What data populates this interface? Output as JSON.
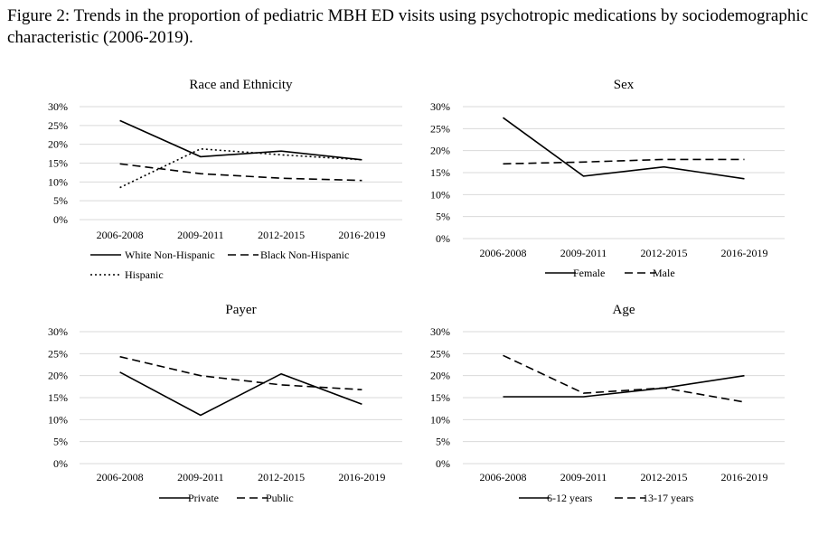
{
  "figure_title": "Figure 2: Trends in the proportion of pediatric MBH ED visits using psychotropic medications by sociodemographic characteristic (2006-2019).",
  "chart_data": [
    {
      "type": "line",
      "title": "Race and Ethnicity",
      "categories": [
        "2006-2008",
        "2009-2011",
        "2012-2015",
        "2016-2019"
      ],
      "ylim": [
        0,
        30
      ],
      "yticks": [
        "0%",
        "5%",
        "10%",
        "15%",
        "20%",
        "25%",
        "30%"
      ],
      "grid": true,
      "legend_position": "bottom",
      "series": [
        {
          "name": "White Non-Hispanic",
          "values": [
            26.3,
            16.7,
            18.2,
            15.9
          ],
          "dash": "solid"
        },
        {
          "name": "Black Non-Hispanic",
          "values": [
            14.8,
            12.2,
            11.0,
            10.4
          ],
          "dash": "dashed"
        },
        {
          "name": "Hispanic",
          "values": [
            8.5,
            18.8,
            17.2,
            15.9
          ],
          "dash": "dotted"
        }
      ]
    },
    {
      "type": "line",
      "title": "Sex",
      "categories": [
        "2006-2008",
        "2009-2011",
        "2012-2015",
        "2016-2019"
      ],
      "ylim": [
        0,
        30
      ],
      "yticks": [
        "0%",
        "5%",
        "10%",
        "15%",
        "20%",
        "25%",
        "30%"
      ],
      "grid": true,
      "legend_position": "bottom",
      "series": [
        {
          "name": "Female",
          "values": [
            27.5,
            14.2,
            16.3,
            13.6
          ],
          "dash": "solid"
        },
        {
          "name": "Male",
          "values": [
            17.0,
            17.4,
            18.0,
            18.0
          ],
          "dash": "dashed"
        }
      ]
    },
    {
      "type": "line",
      "title": "Payer",
      "categories": [
        "2006-2008",
        "2009-2011",
        "2012-2015",
        "2016-2019"
      ],
      "ylim": [
        0,
        30
      ],
      "yticks": [
        "0%",
        "5%",
        "10%",
        "15%",
        "20%",
        "25%",
        "30%"
      ],
      "grid": true,
      "legend_position": "bottom",
      "series": [
        {
          "name": "Private",
          "values": [
            20.8,
            11.0,
            20.4,
            13.5
          ],
          "dash": "solid"
        },
        {
          "name": "Public",
          "values": [
            24.3,
            20.0,
            17.9,
            16.8
          ],
          "dash": "dashed"
        }
      ]
    },
    {
      "type": "line",
      "title": "Age",
      "categories": [
        "2006-2008",
        "2009-2011",
        "2012-2015",
        "2016-2019"
      ],
      "ylim": [
        0,
        30
      ],
      "yticks": [
        "0%",
        "5%",
        "10%",
        "15%",
        "20%",
        "25%",
        "30%"
      ],
      "grid": true,
      "legend_position": "bottom",
      "series": [
        {
          "name": "6-12 years",
          "values": [
            15.2,
            15.2,
            17.2,
            20.0
          ],
          "dash": "solid"
        },
        {
          "name": "13-17 years",
          "values": [
            24.6,
            16.0,
            17.2,
            14.0
          ],
          "dash": "dashed"
        }
      ]
    }
  ]
}
